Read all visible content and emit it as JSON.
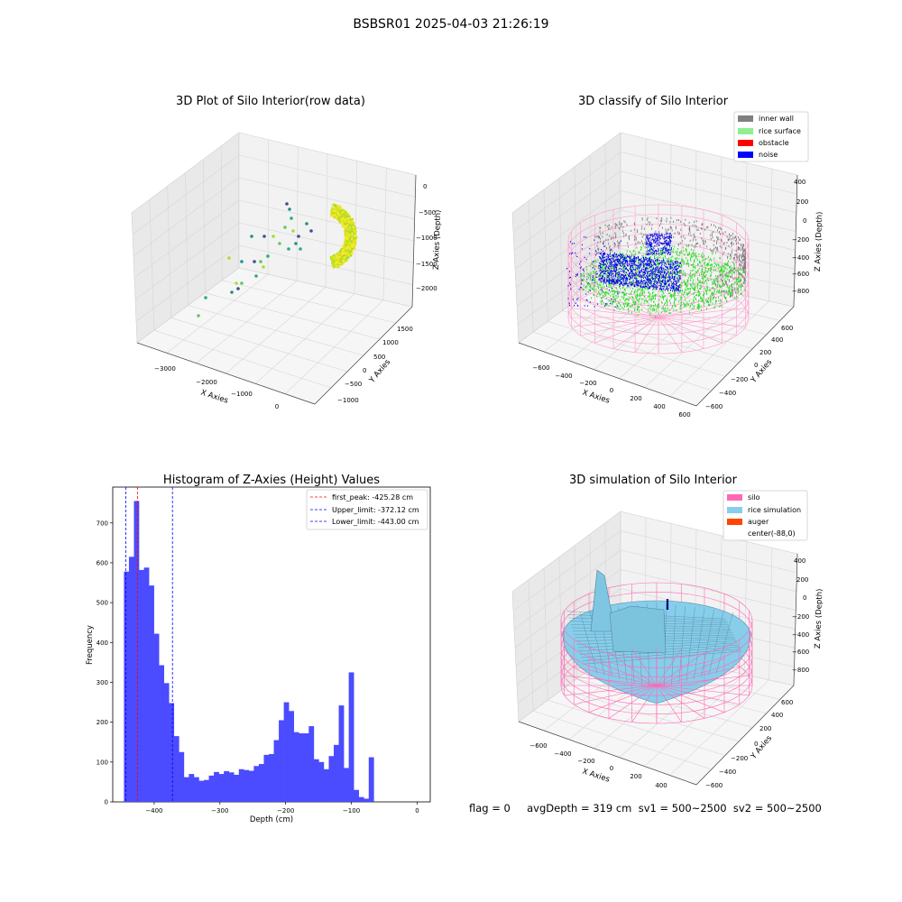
{
  "figure": {
    "suptitle": "BSBSR01 2025-04-03 21:26:19"
  },
  "footer": {
    "text": "flag = 0     avgDepth = 319 cm  sv1 = 500~2500  sv2 = 500~2500"
  },
  "colors": {
    "inner_wall": "#808080",
    "rice_surface": "#90ee90",
    "obstacle": "#ff0000",
    "noise": "#0000ff",
    "silo": "#ff69b4",
    "rice_simulation": "#87ceeb",
    "auger": "#ff4500",
    "hist_bar": "#4b4bff"
  },
  "chart_data": [
    {
      "type": "scatter",
      "title": "3D Plot of Silo Interior(row data)",
      "xlabel": "X Axies",
      "ylabel": "Y Axies",
      "zlabel": "Z Axies (Depth)",
      "xticks": [
        "−3000",
        "−2000",
        "−1000",
        "0"
      ],
      "yticks": [
        "−1000",
        "−500",
        "0",
        "500",
        "1000",
        "1500"
      ],
      "zticks": [
        "0",
        "−500",
        "−1000",
        "−1500",
        "−2000"
      ],
      "colormap": "viridis"
    },
    {
      "type": "scatter",
      "title": "3D classify of Silo Interior",
      "xlabel": "X Axies",
      "ylabel": "Y Axies",
      "zlabel": "Z Axies (Depth)",
      "xticks": [
        "−600",
        "−400",
        "−200",
        "0",
        "200",
        "400",
        "600"
      ],
      "yticks": [
        "−600",
        "−400",
        "−200",
        "0",
        "200",
        "400",
        "600"
      ],
      "zticks": [
        "400",
        "200",
        "0",
        "−200",
        "−400",
        "−600",
        "−800"
      ],
      "legend": [
        "inner wall",
        "rice surface",
        "obstacle",
        "noise"
      ],
      "legend_position": "top-right"
    },
    {
      "type": "bar",
      "title": "Histogram of Z-Axies (Height) Values",
      "xlabel": "Depth (cm)",
      "ylabel": "Frequency",
      "xlim": [
        -463,
        20
      ],
      "ylim": [
        0,
        790
      ],
      "xticks": [
        -400,
        -300,
        -200,
        -100,
        0
      ],
      "xtick_labels": [
        "−400",
        "−300",
        "−200",
        "−100",
        "0"
      ],
      "yticks": [
        0,
        100,
        200,
        300,
        400,
        500,
        600,
        700
      ],
      "bin_start": -446,
      "bin_width": 7.6,
      "values": [
        578,
        615,
        755,
        582,
        588,
        543,
        422,
        343,
        298,
        248,
        165,
        125,
        62,
        70,
        62,
        53,
        55,
        66,
        75,
        70,
        77,
        74,
        68,
        82,
        80,
        78,
        90,
        95,
        118,
        120,
        155,
        205,
        250,
        228,
        175,
        172,
        172,
        190,
        107,
        100,
        82,
        115,
        143,
        242,
        85,
        325,
        30,
        12,
        8,
        112
      ],
      "lines": [
        {
          "label": "first_peak: -425.28 cm",
          "x": -425.28,
          "color": "#ff0000"
        },
        {
          "label": "Upper_limit: -372.12 cm",
          "x": -372.12,
          "color": "#0000ff"
        },
        {
          "label": "Lower_limit: -443.00 cm",
          "x": -443.0,
          "color": "#0000ff"
        }
      ],
      "legend_position": "top-right"
    },
    {
      "type": "surface",
      "title": "3D simulation of Silo Interior",
      "xlabel": "X Axies",
      "ylabel": "Y Axies",
      "zlabel": "Z Axies (Depth)",
      "xticks": [
        "−600",
        "−400",
        "−200",
        "0",
        "200",
        "400"
      ],
      "yticks": [
        "−600",
        "−400",
        "−200",
        "0",
        "200",
        "400",
        "600"
      ],
      "zticks": [
        "400",
        "200",
        "0",
        "−200",
        "−400",
        "−600",
        "−800"
      ],
      "legend": [
        "silo",
        "rice simulation",
        "auger",
        "center(-88,0)"
      ],
      "legend_position": "top-right"
    }
  ]
}
